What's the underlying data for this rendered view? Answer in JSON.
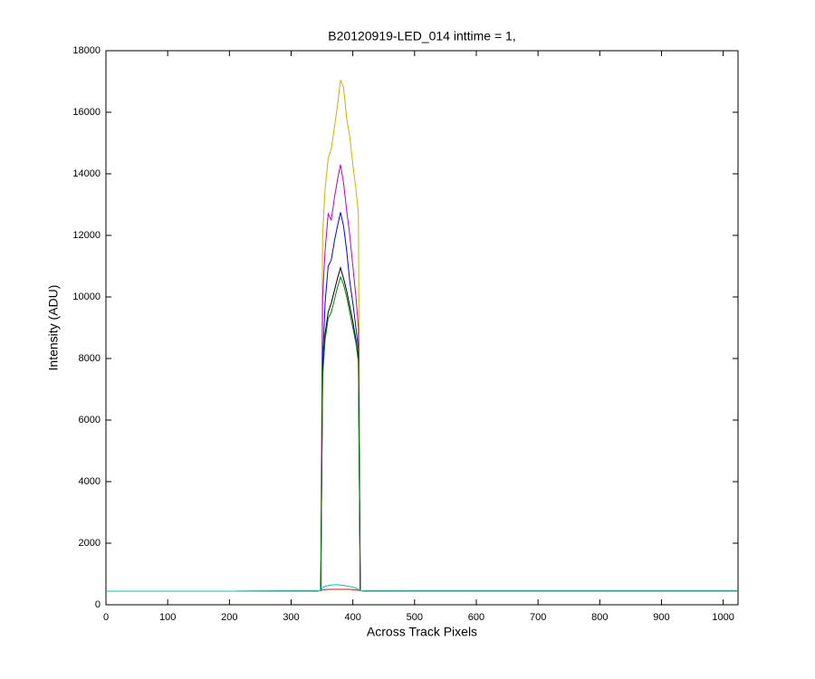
{
  "chart_data": {
    "type": "line",
    "title": "B20120919-LED_014 inttime = 1,",
    "x_label": "Across Track Pixels",
    "y_label": "Intensity (ADU)",
    "x": [
      0,
      100,
      200,
      300,
      340,
      348,
      351,
      355,
      360,
      365,
      370,
      375,
      380,
      385,
      390,
      395,
      400,
      405,
      409,
      412,
      420,
      500,
      600,
      700,
      800,
      900,
      1024
    ],
    "series": [
      {
        "color": "#c8b400",
        "values": [
          440,
          440,
          440,
          445,
          450,
          460,
          12000,
          13500,
          14500,
          14800,
          15500,
          16200,
          17050,
          16800,
          15800,
          15200,
          14300,
          13500,
          12700,
          460,
          450,
          445,
          445,
          445,
          445,
          445,
          445
        ]
      },
      {
        "color": "#bf00bf",
        "values": [
          440,
          440,
          440,
          445,
          450,
          460,
          10000,
          11500,
          12700,
          12500,
          13200,
          13800,
          14300,
          13700,
          12800,
          12000,
          11000,
          10000,
          9000,
          460,
          450,
          445,
          445,
          445,
          445,
          445,
          445
        ]
      },
      {
        "color": "#0000ff",
        "values": [
          440,
          440,
          440,
          445,
          450,
          460,
          7800,
          9800,
          11000,
          11200,
          11800,
          12300,
          12750,
          12300,
          11500,
          10500,
          9800,
          9000,
          8300,
          460,
          450,
          445,
          445,
          445,
          445,
          445,
          445
        ]
      },
      {
        "color": "#000000",
        "values": [
          440,
          440,
          440,
          445,
          450,
          460,
          7500,
          8800,
          9500,
          9800,
          10200,
          10600,
          10950,
          10600,
          10200,
          9700,
          9200,
          8600,
          8000,
          460,
          450,
          445,
          445,
          445,
          445,
          445,
          445
        ]
      },
      {
        "color": "#008000",
        "values": [
          440,
          440,
          440,
          445,
          450,
          460,
          7400,
          8600,
          9300,
          9500,
          9900,
          10300,
          10650,
          10400,
          10000,
          9500,
          9000,
          8500,
          7900,
          460,
          450,
          445,
          445,
          445,
          445,
          445,
          445
        ]
      },
      {
        "color": "#ff0000",
        "values": [
          440,
          440,
          440,
          445,
          450,
          460,
          480,
          490,
          500,
          500,
          500,
          500,
          500,
          500,
          500,
          500,
          490,
          480,
          470,
          460,
          450,
          445,
          445,
          445,
          445,
          445,
          445
        ]
      },
      {
        "color": "#00bfbf",
        "values": [
          440,
          440,
          440,
          445,
          450,
          460,
          560,
          600,
          620,
          640,
          650,
          650,
          640,
          630,
          610,
          590,
          570,
          540,
          500,
          460,
          450,
          445,
          445,
          445,
          445,
          445,
          445
        ]
      }
    ],
    "xlim": [
      0,
      1024
    ],
    "xticks": [
      0,
      100,
      200,
      300,
      400,
      500,
      600,
      700,
      800,
      900,
      1000
    ],
    "ylim": [
      0,
      18000
    ],
    "yticks": [
      0,
      2000,
      4000,
      6000,
      8000,
      10000,
      12000,
      14000,
      16000,
      18000
    ]
  }
}
